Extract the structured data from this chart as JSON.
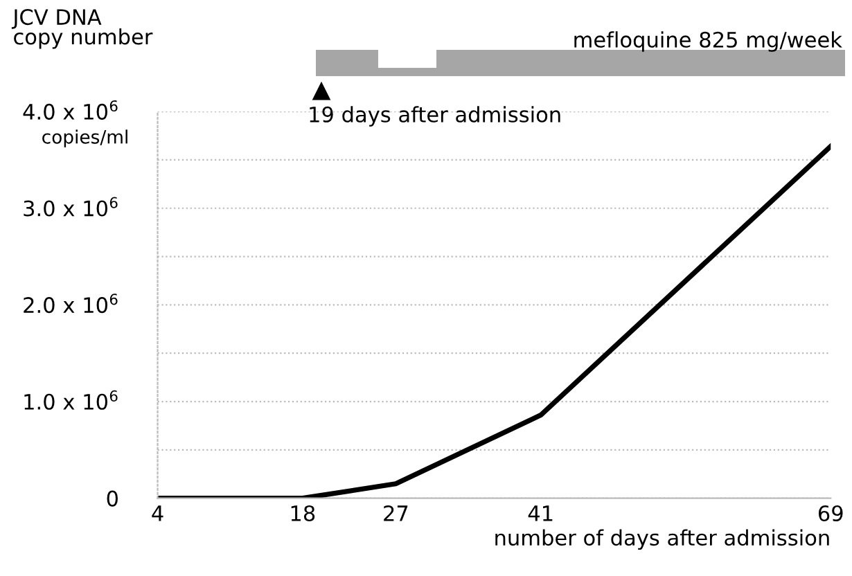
{
  "chart_data": {
    "type": "line",
    "ylabel": "JCV DNA\ncopy number",
    "xlabel": "number of days after admission",
    "x": [
      4,
      18,
      27,
      41,
      69
    ],
    "series": [
      {
        "color": "#000000",
        "values": [
          0,
          0,
          150000,
          860000,
          3640000
        ]
      }
    ],
    "xlim": [
      4,
      69
    ],
    "xticks": [
      4,
      18,
      27,
      41,
      69
    ],
    "ylim": [
      0,
      4000000
    ],
    "yticks": [
      {
        "value": 0,
        "label": "0"
      },
      {
        "value": 500000,
        "label": null
      },
      {
        "value": 1000000,
        "label": "1.0 x 10$^{6}$"
      },
      {
        "value": 1500000,
        "label": null
      },
      {
        "value": 2000000,
        "label": "2.0 x 10$^{6}$"
      },
      {
        "value": 2500000,
        "label": null
      },
      {
        "value": 3000000,
        "label": "3.0 x 10$^{6}$"
      },
      {
        "value": 3500000,
        "label": null
      },
      {
        "value": 4000000,
        "label": "4.0 x 10$^{6}$"
      }
    ],
    "grid": "y",
    "marker": "none",
    "line_style": "solid",
    "legend": false,
    "annotations": [
      "mefloquine 825 mg/week",
      "19 days after admission",
      "copies/ml"
    ]
  }
}
